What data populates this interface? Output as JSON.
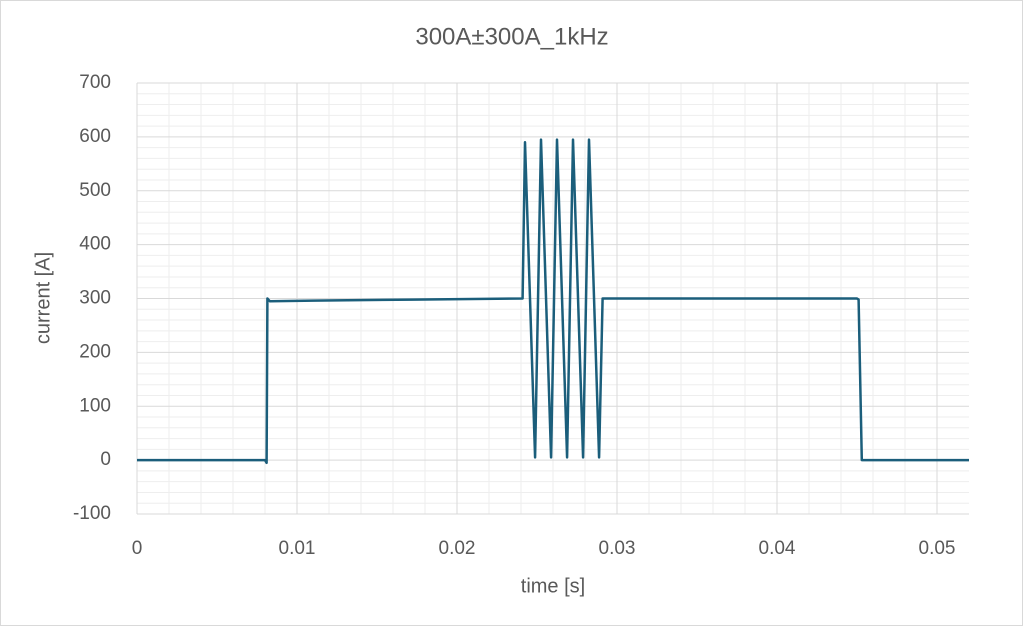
{
  "chart_data": {
    "type": "line",
    "title": "300A±300A_1kHz",
    "x_label": "time [s]",
    "y_label": "current [A]",
    "series": [
      {
        "name": "current",
        "color": "#1b5e7b",
        "x": [
          0,
          0.008,
          0.0081,
          0.00815,
          0.0083,
          0.011,
          0.0172,
          0.0241,
          0.02425,
          0.02488,
          0.02525,
          0.02588,
          0.02625,
          0.02688,
          0.02725,
          0.02788,
          0.02825,
          0.02888,
          0.0291,
          0.045,
          0.0451,
          0.0453,
          0.052
        ],
        "values": [
          0,
          0,
          -5,
          300,
          295,
          296,
          298,
          300,
          590,
          5,
          595,
          5,
          595,
          5,
          595,
          5,
          595,
          5,
          300,
          300,
          298,
          0,
          0
        ]
      }
    ],
    "xlim": [
      0,
      0.052
    ],
    "xticks": [
      0,
      0.01,
      0.02,
      0.03,
      0.04,
      0.05
    ],
    "ylim": [
      -100,
      700
    ],
    "yticks": [
      -100,
      0,
      100,
      200,
      300,
      400,
      500,
      600,
      700
    ],
    "grid": true,
    "minor_grid": true
  }
}
